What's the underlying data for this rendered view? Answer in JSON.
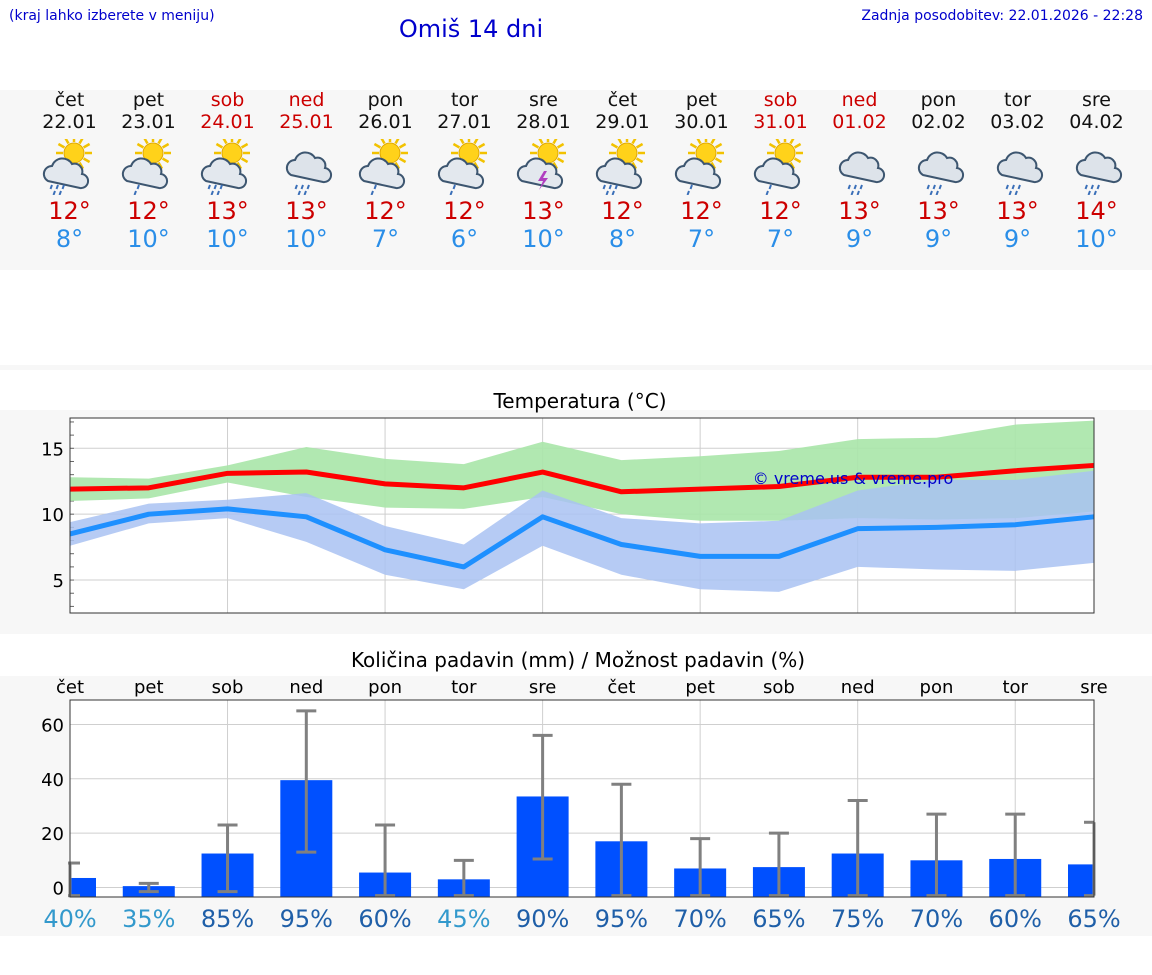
{
  "header": {
    "hint": "(kraj lahko izberete v meniju)",
    "title": "Omiš 14 dni",
    "updated": "Zadnja posodobitev: 22.01.2026 - 22:28"
  },
  "days": [
    {
      "name": "čet",
      "date": "22.01",
      "max": "12°",
      "min": "8°",
      "weekend": false,
      "icon": "sun-cloud-rain-icon"
    },
    {
      "name": "pet",
      "date": "23.01",
      "max": "12°",
      "min": "10°",
      "weekend": false,
      "icon": "sun-cloud-light-rain-icon"
    },
    {
      "name": "sob",
      "date": "24.01",
      "max": "13°",
      "min": "10°",
      "weekend": true,
      "icon": "sun-cloud-rain-icon"
    },
    {
      "name": "ned",
      "date": "25.01",
      "max": "13°",
      "min": "10°",
      "weekend": true,
      "icon": "cloud-rain-icon"
    },
    {
      "name": "pon",
      "date": "26.01",
      "max": "12°",
      "min": "7°",
      "weekend": false,
      "icon": "sun-cloud-light-rain-icon"
    },
    {
      "name": "tor",
      "date": "27.01",
      "max": "12°",
      "min": "6°",
      "weekend": false,
      "icon": "sun-cloud-light-rain-icon"
    },
    {
      "name": "sre",
      "date": "28.01",
      "max": "13°",
      "min": "10°",
      "weekend": false,
      "icon": "sun-thunder-icon"
    },
    {
      "name": "čet",
      "date": "29.01",
      "max": "12°",
      "min": "8°",
      "weekend": false,
      "icon": "sun-cloud-rain-icon"
    },
    {
      "name": "pet",
      "date": "30.01",
      "max": "12°",
      "min": "7°",
      "weekend": false,
      "icon": "sun-cloud-light-rain-icon"
    },
    {
      "name": "sob",
      "date": "31.01",
      "max": "12°",
      "min": "7°",
      "weekend": true,
      "icon": "sun-cloud-light-rain-icon"
    },
    {
      "name": "ned",
      "date": "01.02",
      "max": "13°",
      "min": "9°",
      "weekend": true,
      "icon": "cloud-rain-icon"
    },
    {
      "name": "pon",
      "date": "02.02",
      "max": "13°",
      "min": "9°",
      "weekend": false,
      "icon": "cloud-rain-icon"
    },
    {
      "name": "tor",
      "date": "03.02",
      "max": "13°",
      "min": "9°",
      "weekend": false,
      "icon": "cloud-rain-icon"
    },
    {
      "name": "sre",
      "date": "04.02",
      "max": "14°",
      "min": "10°",
      "weekend": false,
      "icon": "cloud-rain-icon"
    }
  ],
  "colors": {
    "weekend": "#cc0000",
    "min_temp": "#2a8ee8",
    "max_line": "#ff0000",
    "min_line": "#1e90ff",
    "max_band": "#a8e6a8",
    "min_band": "#a9c2f2",
    "bar": "#0050ff",
    "whisker": "#808080",
    "title": "#0000cc"
  },
  "chart_data": [
    {
      "type": "line",
      "title": "Temperatura (°C)",
      "watermark": "© vreme.us & vreme.pro",
      "ylim": [
        2.5,
        17.3
      ],
      "yticks": [
        5,
        10,
        15
      ],
      "x": [
        0,
        1,
        2,
        3,
        4,
        5,
        6,
        7,
        8,
        9,
        10,
        11,
        12,
        13
      ],
      "series": [
        {
          "name": "max",
          "values": [
            11.9,
            12.0,
            13.1,
            13.2,
            12.3,
            12.0,
            13.2,
            11.7,
            11.9,
            12.1,
            12.8,
            12.8,
            13.3,
            13.7
          ],
          "band_low": [
            11.0,
            11.2,
            12.4,
            11.3,
            10.5,
            10.4,
            11.3,
            10.0,
            9.5,
            9.5,
            9.7,
            9.6,
            9.7,
            10.2
          ],
          "band_high": [
            12.8,
            12.7,
            13.7,
            15.1,
            14.2,
            13.8,
            15.5,
            14.1,
            14.4,
            14.8,
            15.7,
            15.8,
            16.8,
            17.1
          ]
        },
        {
          "name": "min",
          "values": [
            8.5,
            10.0,
            10.4,
            9.8,
            7.3,
            6.0,
            9.8,
            7.7,
            6.8,
            6.8,
            8.9,
            9.0,
            9.2,
            9.8
          ],
          "band_low": [
            7.6,
            9.3,
            9.7,
            7.9,
            5.4,
            4.3,
            7.6,
            5.4,
            4.3,
            4.1,
            6.0,
            5.8,
            5.7,
            6.3
          ],
          "band_high": [
            9.4,
            10.8,
            11.1,
            11.6,
            9.1,
            7.7,
            11.8,
            9.7,
            9.3,
            9.5,
            11.8,
            12.6,
            12.6,
            13.3
          ]
        }
      ]
    },
    {
      "type": "bar",
      "title": "Količina padavin (mm) / Možnost padavin (%)",
      "ylim": [
        -3.5,
        69
      ],
      "yticks": [
        0,
        20,
        40,
        60
      ],
      "categories": [
        "čet",
        "pet",
        "sob",
        "ned",
        "pon",
        "tor",
        "sre",
        "čet",
        "pet",
        "sob",
        "ned",
        "pon",
        "tor",
        "sre"
      ],
      "values": [
        3.5,
        0.5,
        12.5,
        39.5,
        5.5,
        3.0,
        33.5,
        17.0,
        7.0,
        7.5,
        12.5,
        10.0,
        10.5,
        8.5
      ],
      "error_high": [
        9,
        1.5,
        23,
        65,
        23,
        10,
        56,
        38,
        18,
        20,
        32,
        27,
        27,
        24
      ],
      "error_low": [
        -3,
        -1.5,
        -1.5,
        13,
        -3,
        -3,
        10.5,
        -3,
        -3,
        -3,
        -3,
        -3,
        -3,
        -3
      ],
      "probability": [
        "40%",
        "35%",
        "85%",
        "95%",
        "60%",
        "45%",
        "90%",
        "95%",
        "70%",
        "65%",
        "75%",
        "70%",
        "60%",
        "65%"
      ],
      "probability_colors": [
        "#3399cc",
        "#3399cc",
        "#1f5fa8",
        "#1f5fa8",
        "#1f5fa8",
        "#3399cc",
        "#1f5fa8",
        "#1f5fa8",
        "#1f5fa8",
        "#1f5fa8",
        "#1f5fa8",
        "#1f5fa8",
        "#1f5fa8",
        "#1f5fa8"
      ]
    }
  ]
}
